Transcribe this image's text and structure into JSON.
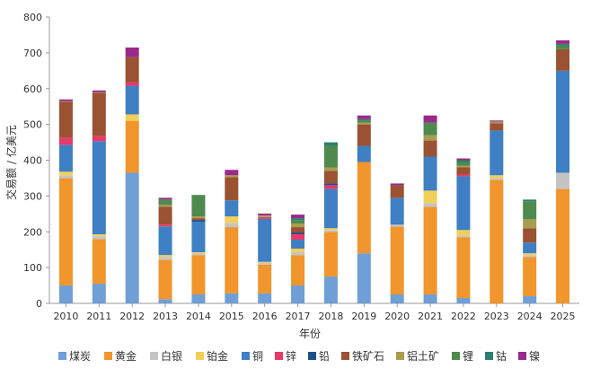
{
  "chart_data": {
    "type": "bar",
    "stacked": true,
    "ylabel": "交易额 / 亿美元",
    "xlabel": "年份",
    "ylim": [
      0,
      800
    ],
    "yticks": [
      0,
      100,
      200,
      300,
      400,
      500,
      600,
      700,
      800
    ],
    "grid": false,
    "legend_position": "bottom",
    "categories": [
      "2010",
      "2011",
      "2012",
      "2013",
      "2014",
      "2015",
      "2016",
      "2017",
      "2018",
      "2019",
      "2020",
      "2021",
      "2022",
      "2023",
      "2024",
      "2025"
    ],
    "series": [
      {
        "name": "煤炭",
        "color": "#6f9fd6",
        "values": [
          50,
          55,
          365,
          12,
          25,
          28,
          28,
          50,
          75,
          140,
          25,
          25,
          15,
          0,
          20,
          0
        ]
      },
      {
        "name": "黄金",
        "color": "#f0962c",
        "values": [
          300,
          125,
          145,
          110,
          110,
          185,
          80,
          85,
          125,
          255,
          190,
          245,
          170,
          345,
          110,
          320
        ]
      },
      {
        "name": "白银",
        "color": "#c4c4c4",
        "values": [
          8,
          8,
          0,
          8,
          5,
          12,
          5,
          8,
          5,
          0,
          5,
          10,
          5,
          5,
          5,
          45
        ]
      },
      {
        "name": "铂金",
        "color": "#f2cf56",
        "values": [
          10,
          5,
          18,
          5,
          3,
          18,
          3,
          10,
          5,
          0,
          0,
          35,
          15,
          8,
          5,
          0
        ]
      },
      {
        "name": "铜",
        "color": "#3f7fc4",
        "values": [
          75,
          260,
          80,
          80,
          85,
          45,
          120,
          25,
          110,
          45,
          75,
          95,
          150,
          125,
          30,
          285
        ]
      },
      {
        "name": "锌",
        "color": "#e8396b",
        "values": [
          20,
          15,
          10,
          5,
          0,
          0,
          5,
          15,
          10,
          0,
          0,
          0,
          5,
          0,
          0,
          0
        ]
      },
      {
        "name": "铅",
        "color": "#1f4e8c",
        "values": [
          0,
          0,
          0,
          0,
          5,
          0,
          0,
          5,
          5,
          0,
          0,
          0,
          0,
          0,
          0,
          0
        ]
      },
      {
        "name": "铁矿石",
        "color": "#9a5232",
        "values": [
          100,
          120,
          70,
          50,
          5,
          65,
          0,
          15,
          35,
          60,
          35,
          45,
          20,
          20,
          40,
          60
        ]
      },
      {
        "name": "铝土矿",
        "color": "#a89c4e",
        "values": [
          2,
          2,
          0,
          5,
          5,
          5,
          5,
          10,
          10,
          5,
          0,
          15,
          5,
          5,
          25,
          0
        ]
      },
      {
        "name": "锂",
        "color": "#4e8a4e",
        "values": [
          0,
          0,
          0,
          15,
          60,
          0,
          0,
          10,
          60,
          5,
          0,
          35,
          10,
          0,
          50,
          10
        ]
      },
      {
        "name": "钴",
        "color": "#2d7f6d",
        "values": [
          0,
          0,
          0,
          0,
          0,
          0,
          0,
          5,
          10,
          5,
          0,
          0,
          5,
          0,
          5,
          5
        ]
      },
      {
        "name": "镍",
        "color": "#982a8a",
        "values": [
          5,
          5,
          27,
          5,
          0,
          15,
          5,
          10,
          0,
          10,
          5,
          20,
          5,
          3,
          0,
          10
        ]
      }
    ]
  }
}
